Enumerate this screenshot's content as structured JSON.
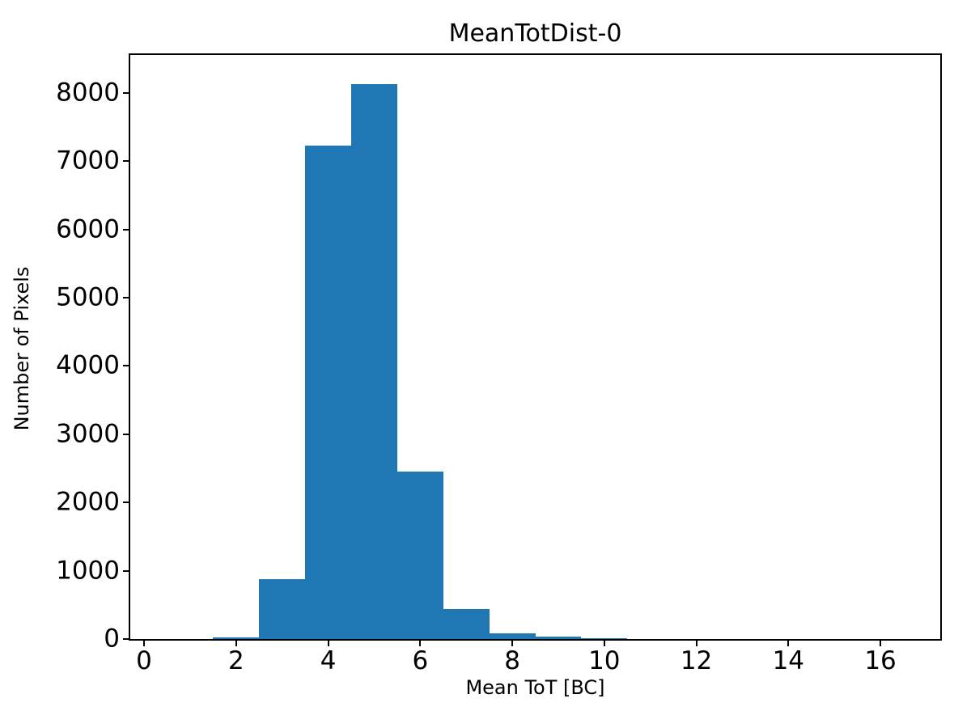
{
  "figure": {
    "background": "#ffffff",
    "text_color": "#000000",
    "spine_color": "#000000"
  },
  "chart_data": {
    "type": "bar",
    "subtype": "histogram",
    "title": "MeanTotDist-0",
    "xlabel": "Mean ToT [BC]",
    "ylabel": "Number of Pixels",
    "bar_color": "#1f77b4",
    "bin_edges": [
      0.5,
      1.5,
      2.5,
      3.5,
      4.5,
      5.5,
      6.5,
      7.5,
      8.5,
      9.5,
      10.5,
      11.5,
      12.5,
      13.5,
      14.5,
      15.5,
      16.5
    ],
    "values": [
      0,
      25,
      880,
      7225,
      8125,
      2450,
      435,
      80,
      30,
      15,
      0,
      0,
      0,
      0,
      0,
      0
    ],
    "xlim": [
      -0.3,
      17.3
    ],
    "ylim": [
      0,
      8554
    ],
    "xticks": {
      "values": [
        0,
        2,
        4,
        6,
        8,
        10,
        12,
        14,
        16
      ],
      "labels": [
        "0",
        "2",
        "4",
        "6",
        "8",
        "10",
        "12",
        "14",
        "16"
      ]
    },
    "yticks": {
      "values": [
        0,
        1000,
        2000,
        3000,
        4000,
        5000,
        6000,
        7000,
        8000
      ],
      "labels": [
        "0",
        "1000",
        "2000",
        "3000",
        "4000",
        "5000",
        "6000",
        "7000",
        "8000"
      ]
    },
    "grid": false,
    "legend": null
  }
}
